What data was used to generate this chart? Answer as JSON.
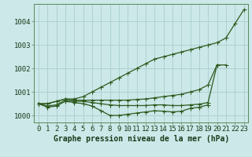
{
  "title": "Graphe pression niveau de la mer (hPa)",
  "bg_color": "#cce8e8",
  "line_color": "#2d5a1e",
  "grid_color": "#aacece",
  "x_labels": [
    "0",
    "1",
    "2",
    "3",
    "4",
    "5",
    "6",
    "7",
    "8",
    "9",
    "10",
    "11",
    "12",
    "13",
    "14",
    "15",
    "16",
    "17",
    "18",
    "19",
    "20",
    "21",
    "22",
    "23"
  ],
  "hours": [
    0,
    1,
    2,
    3,
    4,
    5,
    6,
    7,
    8,
    9,
    10,
    11,
    12,
    13,
    14,
    15,
    16,
    17,
    18,
    19,
    20,
    21,
    22,
    23
  ],
  "top_line": [
    1000.5,
    1000.5,
    1000.6,
    1000.7,
    1000.7,
    1000.8,
    1001.0,
    1001.2,
    1001.4,
    1001.6,
    1001.8,
    1002.0,
    1002.2,
    1002.4,
    1002.5,
    1002.6,
    1002.7,
    1002.8,
    1002.9,
    1003.0,
    1003.1,
    1003.3,
    1003.9,
    1004.5
  ],
  "upper_mid": [
    1000.5,
    1000.5,
    1000.6,
    1000.7,
    1000.65,
    1000.65,
    1000.65,
    1000.65,
    1000.65,
    1000.65,
    1000.65,
    1000.68,
    1000.7,
    1000.75,
    1000.8,
    1000.85,
    1000.9,
    1001.0,
    1001.1,
    1001.3,
    1002.15,
    1002.15,
    null,
    null
  ],
  "lower_mid": [
    1000.5,
    1000.4,
    1000.45,
    1000.65,
    1000.6,
    1000.6,
    1000.55,
    1000.5,
    1000.45,
    1000.42,
    1000.42,
    1000.42,
    1000.42,
    1000.45,
    1000.45,
    1000.42,
    1000.42,
    1000.45,
    1000.48,
    1000.55,
    1002.15,
    null,
    null,
    null
  ],
  "bottom_line": [
    1000.5,
    1000.35,
    1000.4,
    1000.6,
    1000.55,
    1000.5,
    1000.4,
    1000.2,
    1000.0,
    1000.0,
    1000.05,
    1000.1,
    1000.15,
    1000.2,
    1000.18,
    1000.15,
    1000.18,
    1000.3,
    1000.35,
    1000.45,
    null,
    null,
    null,
    null
  ],
  "ylim": [
    999.7,
    1004.75
  ],
  "yticks": [
    1000,
    1001,
    1002,
    1003,
    1004
  ],
  "tick_fontsize": 6.5,
  "title_fontsize": 7,
  "marker_size": 2.0
}
